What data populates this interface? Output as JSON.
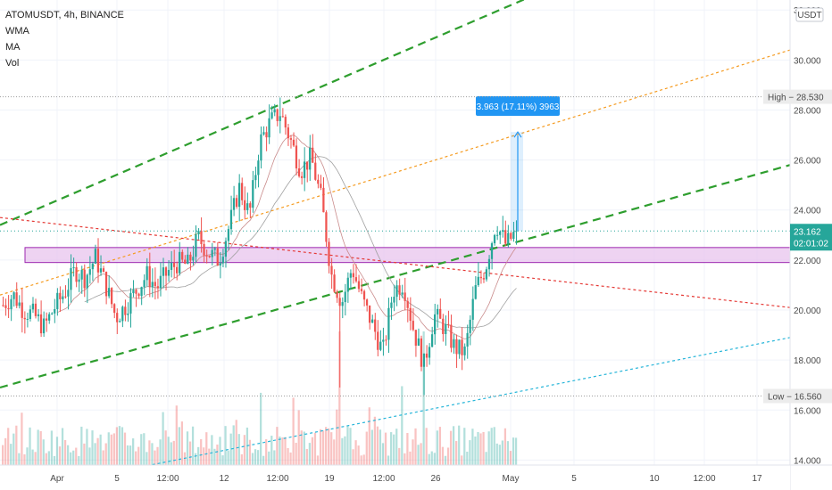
{
  "legend": {
    "symbol": "ATOMUSDT, 4h, BINANCE",
    "indicators": [
      "WMA",
      "MA",
      "Vol"
    ]
  },
  "chart_data": {
    "type": "candlestick",
    "currency_badge": "USDT",
    "y_range": [
      13.8,
      32.4
    ],
    "y_ticks": [
      14,
      16,
      18,
      20,
      22,
      24,
      26,
      28,
      30,
      32
    ],
    "x_ticks": [
      "Apr",
      "5",
      "12:00",
      "12",
      "12:00",
      "19",
      "12:00",
      "26",
      "May",
      "5",
      "10",
      "12:00",
      "17"
    ],
    "price_markers": {
      "high_label": "High",
      "high_value": "28.530",
      "low_label": "Low",
      "low_value": "16.560",
      "last_price": "23.162",
      "countdown": "02:01:02"
    },
    "measure_label": "3.963 (17.11%) 3963",
    "measure_from": 23.16,
    "measure_to": 27.12,
    "zone": {
      "top": 22.5,
      "bottom": 21.9
    },
    "trendlines": [
      {
        "name": "green-upper-channel",
        "color": "#2e9e2e",
        "style": "dashed",
        "from": {
          "t": 0,
          "price": 23.4
        },
        "to": {
          "t": 1,
          "price": 37.0
        }
      },
      {
        "name": "green-lower-channel",
        "color": "#2e9e2e",
        "style": "dashed",
        "from": {
          "t": 0,
          "price": 16.9
        },
        "to": {
          "t": 1,
          "price": 25.8
        }
      },
      {
        "name": "orange-mid-line",
        "color": "#f59b20",
        "style": "dotted",
        "from": {
          "t": 0,
          "price": 20.6
        },
        "to": {
          "t": 1,
          "price": 30.4
        }
      },
      {
        "name": "red-descending-line",
        "color": "#e53935",
        "style": "dotted",
        "from": {
          "t": 0,
          "price": 23.7
        },
        "to": {
          "t": 1,
          "price": 20.1
        }
      },
      {
        "name": "cyan-rising-line",
        "color": "#26b5d9",
        "style": "dotted",
        "from": {
          "t": 0,
          "price": 12.6
        },
        "to": {
          "t": 1,
          "price": 18.9
        }
      }
    ],
    "price_path": [
      [
        0.0,
        20.2
      ],
      [
        0.02,
        20.6
      ],
      [
        0.04,
        20.0
      ],
      [
        0.06,
        19.8
      ],
      [
        0.08,
        19.3
      ],
      [
        0.1,
        20.1
      ],
      [
        0.12,
        20.7
      ],
      [
        0.14,
        21.6
      ],
      [
        0.16,
        21.3
      ],
      [
        0.18,
        22.1
      ],
      [
        0.2,
        21.0
      ],
      [
        0.22,
        19.7
      ],
      [
        0.24,
        20.2
      ],
      [
        0.26,
        20.8
      ],
      [
        0.28,
        21.4
      ],
      [
        0.3,
        20.9
      ],
      [
        0.32,
        21.5
      ],
      [
        0.34,
        21.9
      ],
      [
        0.36,
        21.8
      ],
      [
        0.38,
        22.9
      ],
      [
        0.4,
        22.3
      ],
      [
        0.42,
        22.0
      ],
      [
        0.44,
        23.3
      ],
      [
        0.46,
        24.9
      ],
      [
        0.48,
        23.8
      ],
      [
        0.5,
        26.7
      ],
      [
        0.52,
        27.5
      ],
      [
        0.54,
        27.9
      ],
      [
        0.56,
        26.8
      ],
      [
        0.58,
        25.6
      ],
      [
        0.6,
        26.1
      ],
      [
        0.62,
        24.4
      ],
      [
        0.64,
        21.4
      ],
      [
        0.66,
        20.3
      ],
      [
        0.68,
        21.7
      ],
      [
        0.7,
        20.4
      ],
      [
        0.72,
        19.4
      ],
      [
        0.74,
        18.3
      ],
      [
        0.76,
        20.8
      ],
      [
        0.78,
        21.1
      ],
      [
        0.8,
        19.2
      ],
      [
        0.82,
        17.8
      ],
      [
        0.84,
        19.8
      ],
      [
        0.86,
        19.3
      ],
      [
        0.88,
        18.5
      ],
      [
        0.9,
        18.3
      ],
      [
        0.92,
        20.8
      ],
      [
        0.94,
        21.7
      ],
      [
        0.96,
        23.5
      ],
      [
        0.98,
        22.6
      ],
      [
        1.0,
        23.16
      ]
    ],
    "colors": {
      "up": "#26a69a",
      "down": "#ef5350",
      "zone_fill": "#e8c4ee",
      "zone_border": "#9c27b0",
      "measure": "#2196f3",
      "last_price_bg": "#26a69a"
    }
  }
}
